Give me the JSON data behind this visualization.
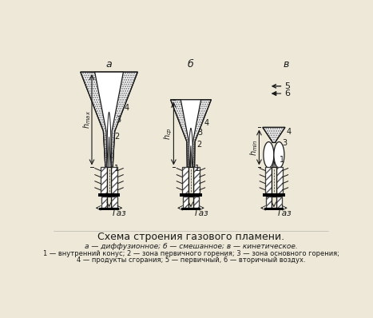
{
  "title": "Схема строения газового пламени.",
  "caption_line1": "а — диффузионное; б — смешанное; в — кинетическое.",
  "caption_line2": "1 — внутренний конус; 2 — зона первичного горения; 3 — зона основного горения;",
  "caption_line3": "4 — продукты сгорания; 5 — первичный, 6 — вторичный воздух.",
  "label_a": "а",
  "label_b": "б",
  "label_c": "в",
  "bg_color": "#ede8d8",
  "line_color": "#1a1a1a"
}
